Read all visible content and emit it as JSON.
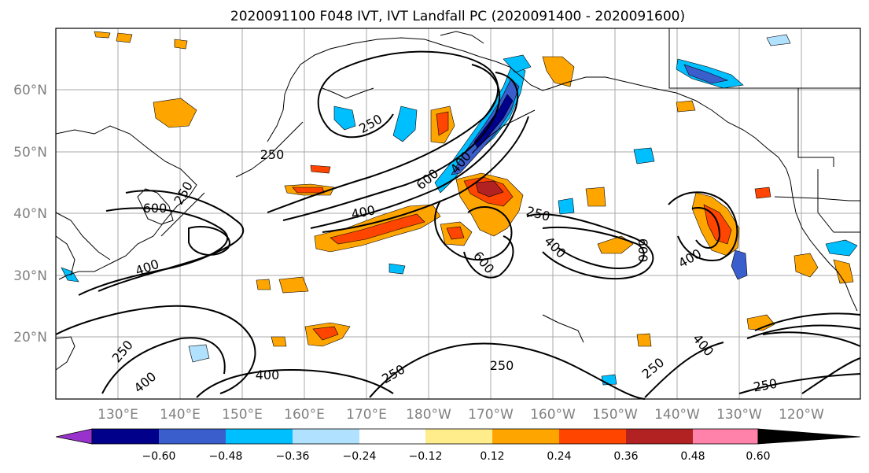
{
  "title": "2020091100 F048 IVT, IVT Landfall PC (2020091400 - 2020091600)",
  "map": {
    "lat_labels": [
      "60°N",
      "50°N",
      "40°N",
      "30°N",
      "20°N"
    ],
    "lon_labels": [
      "130°E",
      "140°E",
      "150°E",
      "160°E",
      "170°E",
      "180°W",
      "170°W",
      "160°W",
      "150°W",
      "140°W",
      "130°W",
      "120°W"
    ],
    "contour_labels": [
      "250",
      "250",
      "600",
      "400",
      "400",
      "600",
      "250",
      "250",
      "400",
      "600",
      "400",
      "600",
      "400",
      "250",
      "400",
      "400",
      "250",
      "250",
      "250",
      "250",
      "400"
    ]
  },
  "colorbar": {
    "ticks": [
      "−0.60",
      "−0.48",
      "−0.36",
      "−0.24",
      "−0.12",
      "0.12",
      "0.24",
      "0.36",
      "0.48",
      "0.60"
    ],
    "colors": [
      "#9932CC",
      "#00008B",
      "#3A5FCD",
      "#00BFFF",
      "#B0E2FF",
      "#FFFFFF",
      "#FFEC8B",
      "#FFA500",
      "#FF4500",
      "#B22222",
      "#FF82AB"
    ]
  }
}
